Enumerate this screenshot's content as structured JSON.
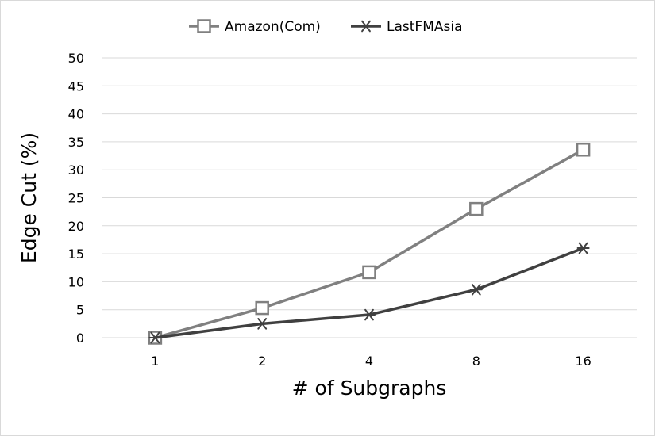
{
  "chart_data": {
    "type": "line",
    "title": "",
    "xlabel": "# of Subgraphs",
    "ylabel": "Edge Cut (%)",
    "categories": [
      "1",
      "2",
      "4",
      "8",
      "16"
    ],
    "ylim": [
      0,
      50
    ],
    "yticks": [
      "0",
      "5",
      "10",
      "15",
      "20",
      "25",
      "30",
      "35",
      "40",
      "45",
      "50"
    ],
    "grid": true,
    "legend_position": "top",
    "series": [
      {
        "name": "Amazon(Com)",
        "values": [
          0,
          5.3,
          11.7,
          23.0,
          33.6
        ],
        "color": "#808080",
        "marker": "square"
      },
      {
        "name": "LastFMAsia",
        "values": [
          0,
          2.5,
          4.1,
          8.6,
          16.0
        ],
        "color": "#404040",
        "marker": "asterisk"
      }
    ]
  }
}
